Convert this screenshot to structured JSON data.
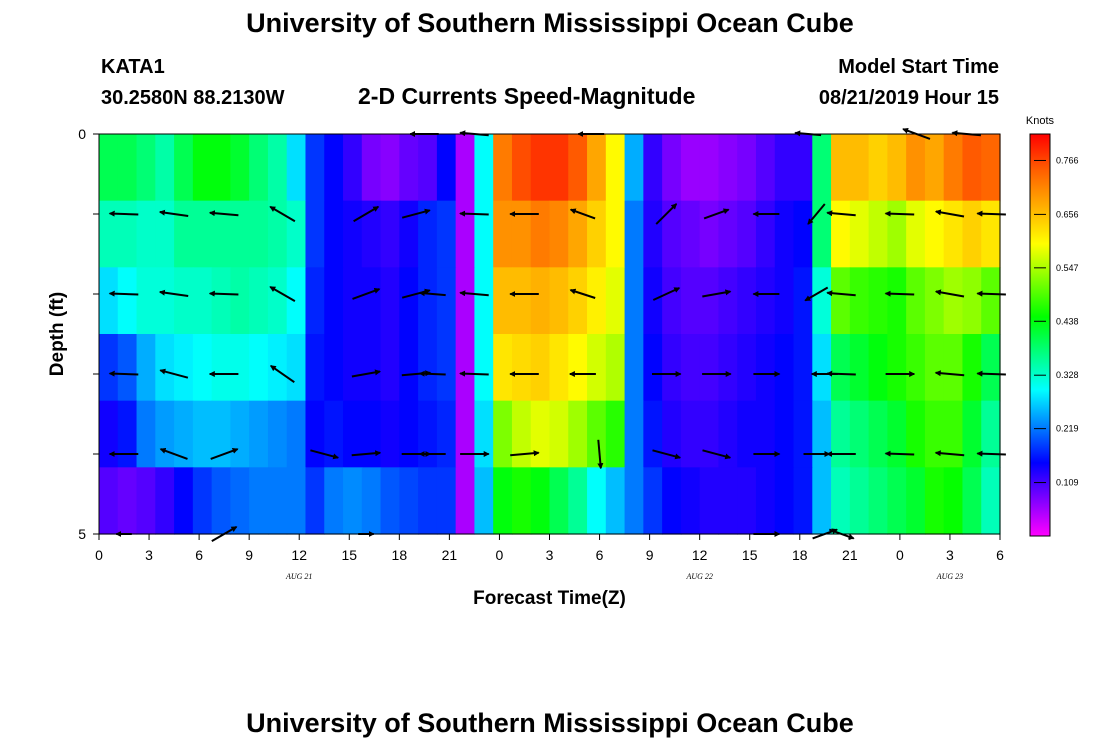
{
  "header": {
    "title": "University of Southern Mississippi Ocean Cube",
    "station_id": "KATA1",
    "station_coords": "30.2580N 88.2130W",
    "subtitle": "2-D Currents Speed-Magnitude",
    "model_label": "Model Start Time",
    "model_value": "08/21/2019 Hour 15"
  },
  "footer": {
    "title": "University of Southern Mississippi Ocean Cube"
  },
  "chart_data": {
    "type": "heatmap",
    "title": "2-D Currents Speed-Magnitude",
    "xlabel": "Forecast Time(Z)",
    "ylabel": "Depth (ft)",
    "x_tick_labels": [
      "0",
      "3",
      "6",
      "9",
      "12",
      "15",
      "18",
      "21",
      "0",
      "3",
      "6",
      "9",
      "12",
      "15",
      "18",
      "21",
      "0",
      "3",
      "6"
    ],
    "date_labels": [
      {
        "text": "AUG 21",
        "under_tick": 4
      },
      {
        "text": "AUG 22",
        "under_tick": 12
      },
      {
        "text": "AUG 23",
        "under_tick": 17
      }
    ],
    "x_range_hours": [
      0,
      54
    ],
    "y_tick_labels": [
      "0",
      "5"
    ],
    "ylim": [
      0,
      5
    ],
    "depth_rows": 5,
    "colorbar": {
      "unit": "Knots",
      "ticks": [
        0.109,
        0.219,
        0.328,
        0.438,
        0.547,
        0.656,
        0.766
      ],
      "range": [
        0.0,
        0.82
      ],
      "colors": [
        "#ff00ff",
        "#8000ff",
        "#0000ff",
        "#0080ff",
        "#00ffff",
        "#00ff80",
        "#00ff00",
        "#80ff00",
        "#ffff00",
        "#ffb000",
        "#ff6000",
        "#ff0000"
      ]
    },
    "speed_grid_note": "rows top-to-bottom, columns every 1.5 h",
    "speed_grid": [
      [
        0.4,
        0.4,
        0.38,
        0.35,
        0.4,
        0.44,
        0.44,
        0.42,
        0.38,
        0.35,
        0.28,
        0.18,
        0.15,
        0.12,
        0.08,
        0.07,
        0.09,
        0.1,
        0.15,
        0.05,
        0.3,
        0.72,
        0.76,
        0.78,
        0.78,
        0.75,
        0.68,
        0.6,
        0.25,
        0.12,
        0.08,
        0.06,
        0.06,
        0.07,
        0.08,
        0.1,
        0.12,
        0.12,
        0.38,
        0.66,
        0.66,
        0.64,
        0.66,
        0.7,
        0.68,
        0.72,
        0.75,
        0.74
      ],
      [
        0.34,
        0.34,
        0.33,
        0.33,
        0.36,
        0.36,
        0.36,
        0.36,
        0.36,
        0.35,
        0.33,
        0.18,
        0.15,
        0.14,
        0.13,
        0.12,
        0.14,
        0.17,
        0.18,
        0.05,
        0.3,
        0.7,
        0.7,
        0.72,
        0.71,
        0.68,
        0.64,
        0.6,
        0.22,
        0.13,
        0.1,
        0.09,
        0.08,
        0.09,
        0.1,
        0.12,
        0.14,
        0.15,
        0.38,
        0.6,
        0.58,
        0.56,
        0.54,
        0.58,
        0.6,
        0.62,
        0.64,
        0.62
      ],
      [
        0.28,
        0.3,
        0.32,
        0.32,
        0.33,
        0.33,
        0.34,
        0.35,
        0.34,
        0.33,
        0.3,
        0.17,
        0.15,
        0.14,
        0.14,
        0.13,
        0.15,
        0.17,
        0.18,
        0.05,
        0.3,
        0.66,
        0.66,
        0.67,
        0.66,
        0.64,
        0.61,
        0.58,
        0.22,
        0.14,
        0.11,
        0.1,
        0.1,
        0.11,
        0.12,
        0.13,
        0.14,
        0.16,
        0.32,
        0.5,
        0.48,
        0.47,
        0.46,
        0.5,
        0.52,
        0.54,
        0.53,
        0.5
      ],
      [
        0.18,
        0.2,
        0.25,
        0.28,
        0.29,
        0.3,
        0.31,
        0.31,
        0.3,
        0.29,
        0.28,
        0.16,
        0.15,
        0.14,
        0.14,
        0.13,
        0.15,
        0.17,
        0.18,
        0.05,
        0.3,
        0.62,
        0.63,
        0.64,
        0.62,
        0.6,
        0.57,
        0.55,
        0.22,
        0.15,
        0.12,
        0.11,
        0.11,
        0.12,
        0.13,
        0.14,
        0.15,
        0.16,
        0.28,
        0.4,
        0.42,
        0.44,
        0.46,
        0.48,
        0.5,
        0.5,
        0.46,
        0.4
      ],
      [
        0.14,
        0.16,
        0.22,
        0.24,
        0.25,
        0.26,
        0.26,
        0.25,
        0.24,
        0.23,
        0.22,
        0.15,
        0.16,
        0.15,
        0.15,
        0.14,
        0.15,
        0.16,
        0.17,
        0.05,
        0.28,
        0.52,
        0.56,
        0.58,
        0.57,
        0.54,
        0.5,
        0.47,
        0.22,
        0.16,
        0.13,
        0.12,
        0.12,
        0.13,
        0.14,
        0.14,
        0.15,
        0.16,
        0.26,
        0.36,
        0.38,
        0.4,
        0.42,
        0.46,
        0.48,
        0.48,
        0.42,
        0.36
      ],
      [
        0.1,
        0.09,
        0.1,
        0.12,
        0.15,
        0.18,
        0.2,
        0.21,
        0.22,
        0.22,
        0.22,
        0.18,
        0.22,
        0.23,
        0.22,
        0.2,
        0.19,
        0.18,
        0.18,
        0.05,
        0.26,
        0.44,
        0.46,
        0.44,
        0.4,
        0.36,
        0.3,
        0.26,
        0.22,
        0.18,
        0.15,
        0.14,
        0.13,
        0.13,
        0.13,
        0.14,
        0.15,
        0.16,
        0.26,
        0.34,
        0.36,
        0.38,
        0.4,
        0.42,
        0.46,
        0.45,
        0.4,
        0.34
      ]
    ],
    "vectors_note": "arrows: hour, depth row (0-5), angle deg (0=east, counter-clockwise), relative length",
    "vectors": [
      {
        "t": 1.0,
        "d": 0,
        "a": 180,
        "l": 0.0
      },
      {
        "t": 19.5,
        "d": 0,
        "a": 180,
        "l": 0.55
      },
      {
        "t": 22.5,
        "d": 0,
        "a": 175,
        "l": 0.55
      },
      {
        "t": 29.5,
        "d": 0,
        "a": 180,
        "l": 0.5
      },
      {
        "t": 42.5,
        "d": 0,
        "a": 175,
        "l": 0.5
      },
      {
        "t": 49.0,
        "d": 0,
        "a": 160,
        "l": 0.55
      },
      {
        "t": 52.0,
        "d": 0,
        "a": 175,
        "l": 0.55
      },
      {
        "t": 1.5,
        "d": 1,
        "a": 178,
        "l": 0.55
      },
      {
        "t": 4.5,
        "d": 1,
        "a": 172,
        "l": 0.55
      },
      {
        "t": 7.5,
        "d": 1,
        "a": 175,
        "l": 0.55
      },
      {
        "t": 11.0,
        "d": 1,
        "a": 150,
        "l": 0.55
      },
      {
        "t": 16.0,
        "d": 1,
        "a": 30,
        "l": 0.55
      },
      {
        "t": 19.0,
        "d": 1,
        "a": 15,
        "l": 0.55
      },
      {
        "t": 22.5,
        "d": 1,
        "a": 178,
        "l": 0.55
      },
      {
        "t": 25.5,
        "d": 1,
        "a": 180,
        "l": 0.55
      },
      {
        "t": 29.0,
        "d": 1,
        "a": 160,
        "l": 0.5
      },
      {
        "t": 34.0,
        "d": 1,
        "a": 45,
        "l": 0.55
      },
      {
        "t": 37.0,
        "d": 1,
        "a": 20,
        "l": 0.5
      },
      {
        "t": 40.0,
        "d": 1,
        "a": 180,
        "l": 0.5
      },
      {
        "t": 43.0,
        "d": 1,
        "a": 230,
        "l": 0.5
      },
      {
        "t": 44.5,
        "d": 1,
        "a": 175,
        "l": 0.55
      },
      {
        "t": 48.0,
        "d": 1,
        "a": 178,
        "l": 0.55
      },
      {
        "t": 51.0,
        "d": 1,
        "a": 170,
        "l": 0.55
      },
      {
        "t": 53.5,
        "d": 1,
        "a": 178,
        "l": 0.55
      },
      {
        "t": 1.5,
        "d": 2,
        "a": 178,
        "l": 0.55
      },
      {
        "t": 4.5,
        "d": 2,
        "a": 172,
        "l": 0.55
      },
      {
        "t": 7.5,
        "d": 2,
        "a": 178,
        "l": 0.55
      },
      {
        "t": 11.0,
        "d": 2,
        "a": 150,
        "l": 0.55
      },
      {
        "t": 16.0,
        "d": 2,
        "a": 20,
        "l": 0.55
      },
      {
        "t": 19.0,
        "d": 2,
        "a": 15,
        "l": 0.55
      },
      {
        "t": 20.0,
        "d": 2,
        "a": 175,
        "l": 0.5
      },
      {
        "t": 22.5,
        "d": 2,
        "a": 175,
        "l": 0.55
      },
      {
        "t": 25.5,
        "d": 2,
        "a": 180,
        "l": 0.55
      },
      {
        "t": 29.0,
        "d": 2,
        "a": 162,
        "l": 0.5
      },
      {
        "t": 34.0,
        "d": 2,
        "a": 25,
        "l": 0.55
      },
      {
        "t": 37.0,
        "d": 2,
        "a": 10,
        "l": 0.55
      },
      {
        "t": 40.0,
        "d": 2,
        "a": 180,
        "l": 0.5
      },
      {
        "t": 43.0,
        "d": 2,
        "a": 210,
        "l": 0.5
      },
      {
        "t": 44.5,
        "d": 2,
        "a": 175,
        "l": 0.55
      },
      {
        "t": 48.0,
        "d": 2,
        "a": 178,
        "l": 0.55
      },
      {
        "t": 51.0,
        "d": 2,
        "a": 170,
        "l": 0.55
      },
      {
        "t": 53.5,
        "d": 2,
        "a": 178,
        "l": 0.55
      },
      {
        "t": 1.5,
        "d": 3,
        "a": 178,
        "l": 0.55
      },
      {
        "t": 4.5,
        "d": 3,
        "a": 165,
        "l": 0.55
      },
      {
        "t": 7.5,
        "d": 3,
        "a": 180,
        "l": 0.55
      },
      {
        "t": 11.0,
        "d": 3,
        "a": 145,
        "l": 0.55
      },
      {
        "t": 16.0,
        "d": 3,
        "a": 10,
        "l": 0.55
      },
      {
        "t": 19.0,
        "d": 3,
        "a": 5,
        "l": 0.55
      },
      {
        "t": 20.0,
        "d": 3,
        "a": 178,
        "l": 0.5
      },
      {
        "t": 22.5,
        "d": 3,
        "a": 178,
        "l": 0.55
      },
      {
        "t": 25.5,
        "d": 3,
        "a": 180,
        "l": 0.55
      },
      {
        "t": 29.0,
        "d": 3,
        "a": 180,
        "l": 0.5
      },
      {
        "t": 34.0,
        "d": 3,
        "a": 0,
        "l": 0.55
      },
      {
        "t": 37.0,
        "d": 3,
        "a": 0,
        "l": 0.55
      },
      {
        "t": 40.0,
        "d": 3,
        "a": 0,
        "l": 0.5
      },
      {
        "t": 43.5,
        "d": 3,
        "a": 180,
        "l": 0.5
      },
      {
        "t": 44.5,
        "d": 3,
        "a": 178,
        "l": 0.55
      },
      {
        "t": 48.0,
        "d": 3,
        "a": 0,
        "l": 0.55
      },
      {
        "t": 51.0,
        "d": 3,
        "a": 175,
        "l": 0.55
      },
      {
        "t": 53.5,
        "d": 3,
        "a": 178,
        "l": 0.55
      },
      {
        "t": 1.5,
        "d": 4,
        "a": 180,
        "l": 0.55
      },
      {
        "t": 4.5,
        "d": 4,
        "a": 160,
        "l": 0.55
      },
      {
        "t": 7.5,
        "d": 4,
        "a": 20,
        "l": 0.55
      },
      {
        "t": 13.5,
        "d": 4,
        "a": 345,
        "l": 0.55
      },
      {
        "t": 16.0,
        "d": 4,
        "a": 5,
        "l": 0.55
      },
      {
        "t": 19.0,
        "d": 4,
        "a": 0,
        "l": 0.55
      },
      {
        "t": 20.0,
        "d": 4,
        "a": 180,
        "l": 0.5
      },
      {
        "t": 22.5,
        "d": 4,
        "a": 0,
        "l": 0.55
      },
      {
        "t": 25.5,
        "d": 4,
        "a": 5,
        "l": 0.55
      },
      {
        "t": 30.0,
        "d": 4,
        "a": 275,
        "l": 0.55
      },
      {
        "t": 34.0,
        "d": 4,
        "a": 345,
        "l": 0.55
      },
      {
        "t": 37.0,
        "d": 4,
        "a": 345,
        "l": 0.55
      },
      {
        "t": 40.0,
        "d": 4,
        "a": 0,
        "l": 0.5
      },
      {
        "t": 43.0,
        "d": 4,
        "a": 0,
        "l": 0.5
      },
      {
        "t": 44.5,
        "d": 4,
        "a": 180,
        "l": 0.55
      },
      {
        "t": 48.0,
        "d": 4,
        "a": 178,
        "l": 0.55
      },
      {
        "t": 51.0,
        "d": 4,
        "a": 175,
        "l": 0.55
      },
      {
        "t": 53.5,
        "d": 4,
        "a": 178,
        "l": 0.55
      },
      {
        "t": 1.5,
        "d": 5,
        "a": 180,
        "l": 0.3
      },
      {
        "t": 7.5,
        "d": 5,
        "a": 30,
        "l": 0.55
      },
      {
        "t": 16.0,
        "d": 5,
        "a": 0,
        "l": 0.3
      },
      {
        "t": 40.0,
        "d": 5,
        "a": 0,
        "l": 0.5
      },
      {
        "t": 43.5,
        "d": 5,
        "a": 20,
        "l": 0.5
      },
      {
        "t": 44.5,
        "d": 5,
        "a": 340,
        "l": 0.5
      }
    ]
  }
}
